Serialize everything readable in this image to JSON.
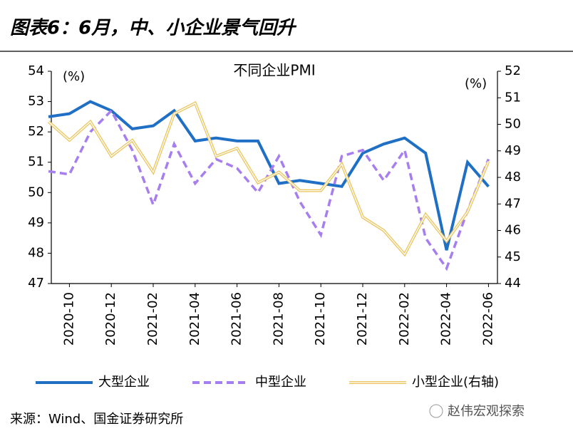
{
  "header": {
    "title": "图表6：6月，中、小企业景气回升"
  },
  "chart_data": {
    "type": "line",
    "title": "不同企业PMI",
    "y_unit_label": "(%)",
    "y2_unit_label": "(%)",
    "categories": [
      null,
      "2020-10",
      null,
      "2020-12",
      null,
      "2021-02",
      null,
      "2021-04",
      null,
      "2021-06",
      null,
      "2021-08",
      null,
      "2021-10",
      null,
      "2021-12",
      null,
      "2022-02",
      null,
      "2022-04",
      null,
      "2022-06"
    ],
    "series": [
      {
        "name": "大型企业",
        "color": "#1f6fc5",
        "style": "solid",
        "values": [
          52.5,
          52.6,
          53.0,
          52.7,
          52.1,
          52.2,
          52.7,
          51.7,
          51.8,
          51.7,
          51.7,
          50.3,
          50.4,
          50.3,
          50.2,
          51.3,
          51.6,
          51.8,
          51.3,
          48.1,
          51.0,
          50.2
        ]
      },
      {
        "name": "中型企业",
        "color": "#a77ef0",
        "style": "dashed",
        "values": [
          50.7,
          50.6,
          52.0,
          52.7,
          51.4,
          49.6,
          51.6,
          50.3,
          51.1,
          50.8,
          50.0,
          51.2,
          49.7,
          48.6,
          51.2,
          51.4,
          50.4,
          51.4,
          48.5,
          47.5,
          49.4,
          51.1
        ]
      },
      {
        "name": "小型企业(右轴)",
        "color": "#ebc764",
        "style": "double",
        "axis": "y2",
        "values": [
          50.1,
          49.4,
          50.1,
          48.8,
          49.4,
          48.2,
          50.4,
          50.8,
          48.8,
          49.1,
          47.8,
          48.2,
          47.5,
          47.5,
          48.5,
          46.5,
          46.0,
          45.1,
          46.6,
          45.6,
          46.7,
          48.6
        ]
      }
    ],
    "ylim": [
      47,
      54
    ],
    "yticks": [
      47,
      48,
      49,
      50,
      51,
      52,
      53,
      54
    ],
    "y2lim": [
      44,
      52
    ],
    "y2ticks": [
      44,
      45,
      46,
      47,
      48,
      49,
      50,
      51,
      52
    ]
  },
  "footer": {
    "source": "来源：Wind、国金证券研究所",
    "watermark": "赵伟宏观探索"
  }
}
